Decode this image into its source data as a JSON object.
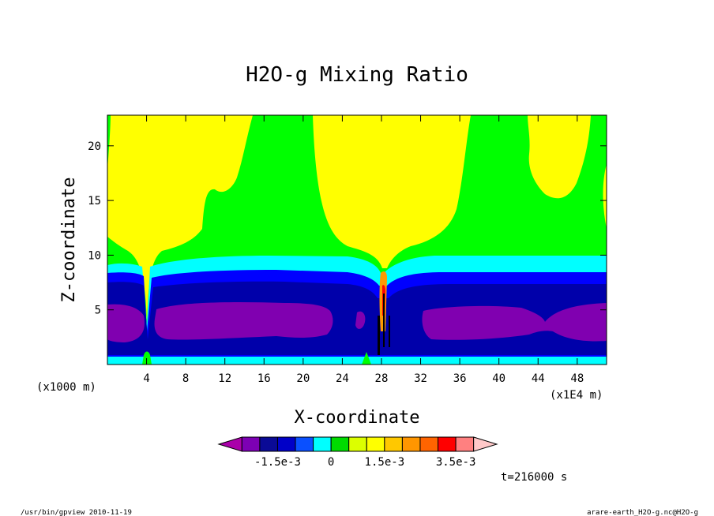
{
  "chart_data": {
    "type": "heatmap",
    "title": "H2O-g Mixing Ratio",
    "xlabel": "X-coordinate",
    "ylabel": "Z-coordinate",
    "x_units_left": "(x1000 m)",
    "x_units_right": "(x1E4 m)",
    "x_ticks": [
      "4",
      "8",
      "12",
      "16",
      "20",
      "24",
      "28",
      "32",
      "36",
      "40",
      "44",
      "48"
    ],
    "y_ticks": [
      "5",
      "10",
      "15",
      "20"
    ],
    "xlim": [
      0,
      51
    ],
    "ylim": [
      0,
      22.8
    ],
    "time_label": "t=216000 s",
    "colorbar": {
      "colors": [
        "#aa00aa",
        "#7d00b4",
        "#0a0a96",
        "#0000c8",
        "#0a50ff",
        "#00ffff",
        "#00dc00",
        "#dcff00",
        "#ffff00",
        "#ffc800",
        "#ff9600",
        "#ff6400",
        "#ff0000",
        "#ff8080",
        "#ffc8c8"
      ],
      "labels": [
        {
          "text": "-1.5e-3",
          "value": -0.0015
        },
        {
          "text": "0",
          "value": 0
        },
        {
          "text": "1.5e-3",
          "value": 0.0015
        },
        {
          "text": "3.5e-3",
          "value": 0.0035
        }
      ],
      "step": 0.0005,
      "min": -0.003
    },
    "regions": {
      "green": "#00ff00",
      "yellow": "#ffff00",
      "cyan": "#00ffff",
      "blue": "#0000ff",
      "navy": "#0000aa",
      "purple": "#8000b0",
      "orange": "#ff9900",
      "red": "#ff0000",
      "black": "#000000"
    }
  },
  "footer": {
    "left": "/usr/bin/gpview  2010-11-19",
    "right": "arare-earth_H2O-g.nc@H2O-g"
  }
}
